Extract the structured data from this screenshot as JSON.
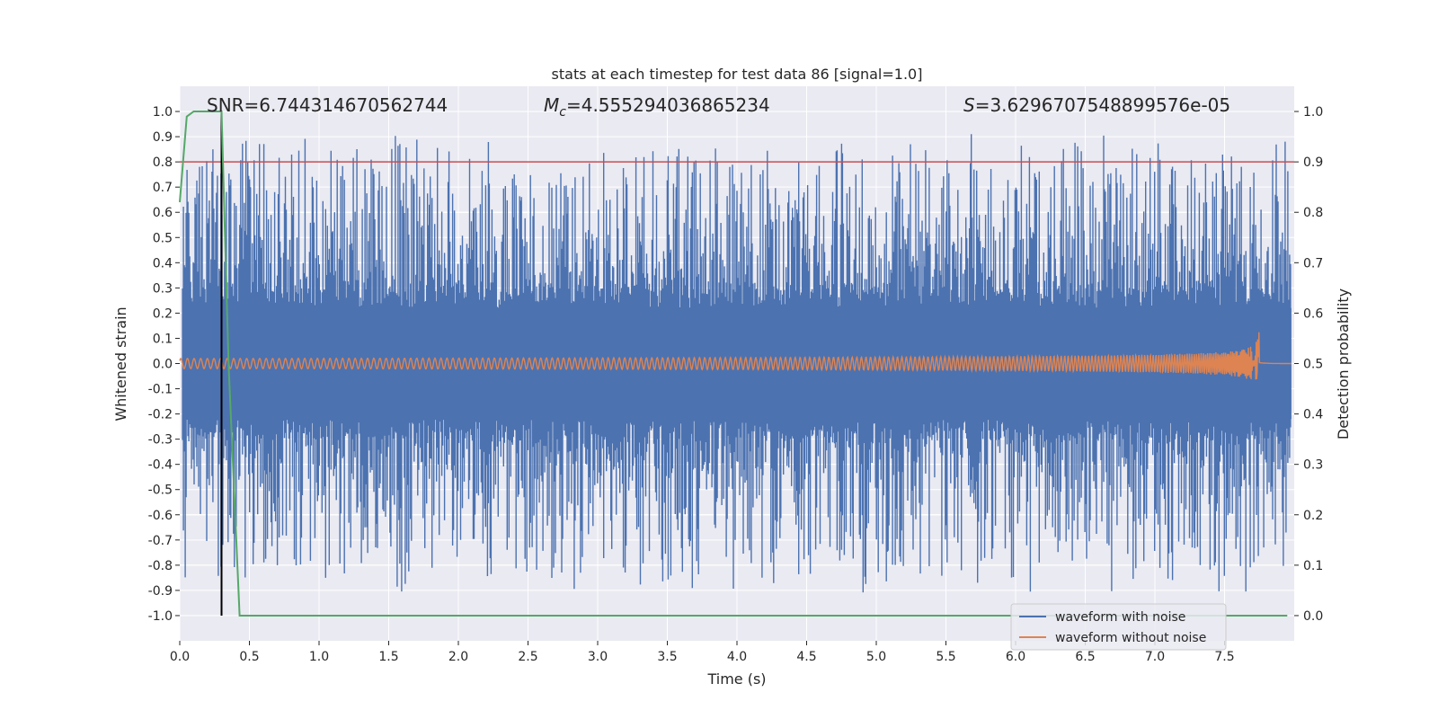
{
  "chart_data": {
    "type": "line",
    "title": "stats at each timestep for test data 86 [signal=1.0]",
    "xlabel": "Time (s)",
    "ylabel": "Whitened strain",
    "y2label": "Detection probability",
    "xlim": [
      0.0,
      8.0
    ],
    "ylim": [
      -1.1,
      1.1
    ],
    "y2lim": [
      -0.05,
      1.05
    ],
    "xticks": [
      "0.0",
      "0.5",
      "1.0",
      "1.5",
      "2.0",
      "2.5",
      "3.0",
      "3.5",
      "4.0",
      "4.5",
      "5.0",
      "5.5",
      "6.0",
      "6.5",
      "7.0",
      "7.5"
    ],
    "yticks": [
      "1.0",
      "0.9",
      "0.8",
      "0.7",
      "0.6",
      "0.5",
      "0.4",
      "0.3",
      "0.2",
      "0.1",
      "0.0",
      "-0.1",
      "-0.2",
      "-0.3",
      "-0.4",
      "-0.5",
      "-0.6",
      "-0.7",
      "-0.8",
      "-0.9",
      "-1.0"
    ],
    "y2ticks": [
      "1.0",
      "0.9",
      "0.8",
      "0.7",
      "0.6",
      "0.5",
      "0.4",
      "0.3",
      "0.2",
      "0.1",
      "0.0"
    ],
    "annotations": {
      "snr": "SNR=6.744314670562744",
      "mc_symbol": "M",
      "mc_subscript": "c",
      "mc_value": "=4.555294036865234",
      "s_symbol": "S",
      "s_value": "=3.6296707548899576e-05"
    },
    "threshold_line": {
      "y2": 0.9,
      "color": "#c44e52"
    },
    "marker_line": {
      "x": 0.3,
      "color": "#000000"
    },
    "series": [
      {
        "name": "waveform with noise",
        "color": "#4c72b0",
        "description_stats": {
          "core_amplitude": 0.22,
          "max_peak": 1.0,
          "min_peak": -0.96
        }
      },
      {
        "name": "waveform without noise",
        "color": "#dd8452",
        "chirp_start_amplitude": 0.02,
        "chirp_peak_amplitude": 0.2,
        "merger_time": 7.75
      },
      {
        "name": "detection probability",
        "color": "#55a868",
        "axis": "y2",
        "points": [
          [
            0.0,
            0.82
          ],
          [
            0.05,
            0.99
          ],
          [
            0.1,
            1.0
          ],
          [
            0.3,
            1.0
          ],
          [
            0.35,
            0.5
          ],
          [
            0.43,
            0.0
          ],
          [
            7.95,
            0.0
          ]
        ]
      }
    ],
    "legend": {
      "position": "lower-right",
      "entries": [
        "waveform with noise",
        "waveform without noise"
      ]
    }
  }
}
